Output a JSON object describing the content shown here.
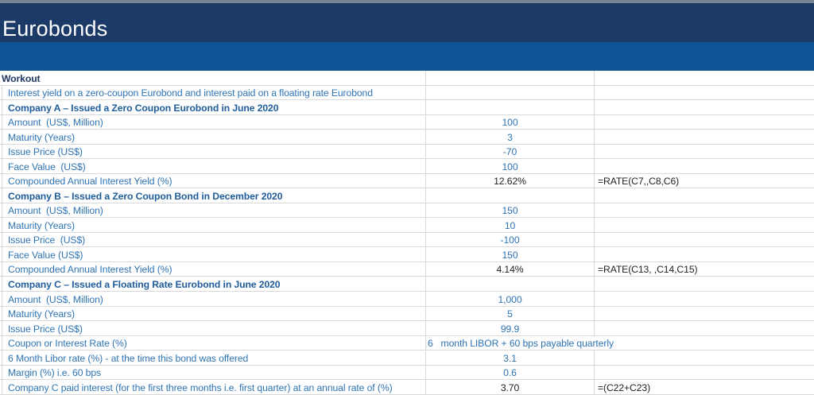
{
  "header": {
    "title": "Eurobonds"
  },
  "colors": {
    "topstrip": "#7b8494",
    "navy": "#1c3a68",
    "band": "#0e5596",
    "grid": "#d9d9d9",
    "navy-text": "#1f3864",
    "label-blue": "#2e74b5",
    "section-blue": "#1f5c9b",
    "ink": "#1f1f1f"
  },
  "table": {
    "rows": [
      {
        "type": "workout",
        "label": "Workout",
        "value": "",
        "formula": ""
      },
      {
        "type": "item",
        "label": "Interest yield on a zero-coupon Eurobond and interest paid on a floating rate Eurobond",
        "value": "",
        "formula": ""
      },
      {
        "type": "section",
        "label": "Company A – Issued a Zero Coupon Eurobond in June 2020",
        "value": "",
        "formula": ""
      },
      {
        "type": "item",
        "label": "Amount  (US$, Million)",
        "value": "100",
        "value_style": "blue",
        "formula": ""
      },
      {
        "type": "item",
        "label": "Maturity (Years)",
        "value": "3",
        "value_style": "blue",
        "formula": ""
      },
      {
        "type": "item",
        "label": "Issue Price (US$)",
        "value": "-70",
        "value_style": "blue",
        "formula": ""
      },
      {
        "type": "item",
        "label": "Face Value  (US$)",
        "value": "100",
        "value_style": "blue",
        "formula": ""
      },
      {
        "type": "item",
        "label": "Compounded Annual Interest Yield (%)",
        "value": "12.62%",
        "value_style": "black",
        "formula": "=RATE(C7,,C8,C6)"
      },
      {
        "type": "section",
        "label": "Company B – Issued a Zero Coupon Bond in December 2020",
        "value": "",
        "formula": ""
      },
      {
        "type": "item",
        "label": "Amount  (US$, Million)",
        "value": "150",
        "value_style": "blue",
        "formula": ""
      },
      {
        "type": "item",
        "label": "Maturity (Years)",
        "value": "10",
        "value_style": "blue",
        "formula": ""
      },
      {
        "type": "item",
        "label": "Issue Price  (US$)",
        "value": "-100",
        "value_style": "blue",
        "formula": ""
      },
      {
        "type": "item",
        "label": "Face Value (US$)",
        "value": "150",
        "value_style": "blue",
        "formula": ""
      },
      {
        "type": "item",
        "label": "Compounded Annual Interest Yield (%)",
        "value": "4.14%",
        "value_style": "black",
        "formula": "=RATE(C13, ,C14,C15)"
      },
      {
        "type": "section",
        "label": "Company C – Issued a Floating Rate Eurobond in June 2020",
        "value": "",
        "formula": ""
      },
      {
        "type": "item",
        "label": "Amount  (US$, Million)",
        "value": "1,000",
        "value_style": "blue",
        "formula": ""
      },
      {
        "type": "item",
        "label": "Maturity (Years)",
        "value": "5",
        "value_style": "blue",
        "formula": ""
      },
      {
        "type": "item",
        "label": "Issue Price (US$)",
        "value": "99.9",
        "value_style": "blue",
        "formula": ""
      },
      {
        "type": "item",
        "label": "Coupon or Interest Rate (%)",
        "value": "6   month LIBOR + 60 bps payable quarterly",
        "value_style": "libor",
        "formula": ""
      },
      {
        "type": "item",
        "label": "6 Month Libor rate (%) - at the time this bond was offered",
        "value": "3.1",
        "value_style": "blue",
        "formula": ""
      },
      {
        "type": "item",
        "label": "Margin (%) i.e. 60 bps",
        "value": "0.6",
        "value_style": "blue",
        "formula": ""
      },
      {
        "type": "item",
        "label": "Company C paid interest (for the first three months i.e. first quarter) at an annual rate of (%)",
        "value": "3.70",
        "value_style": "black",
        "formula": "=(C22+C23)"
      }
    ]
  }
}
